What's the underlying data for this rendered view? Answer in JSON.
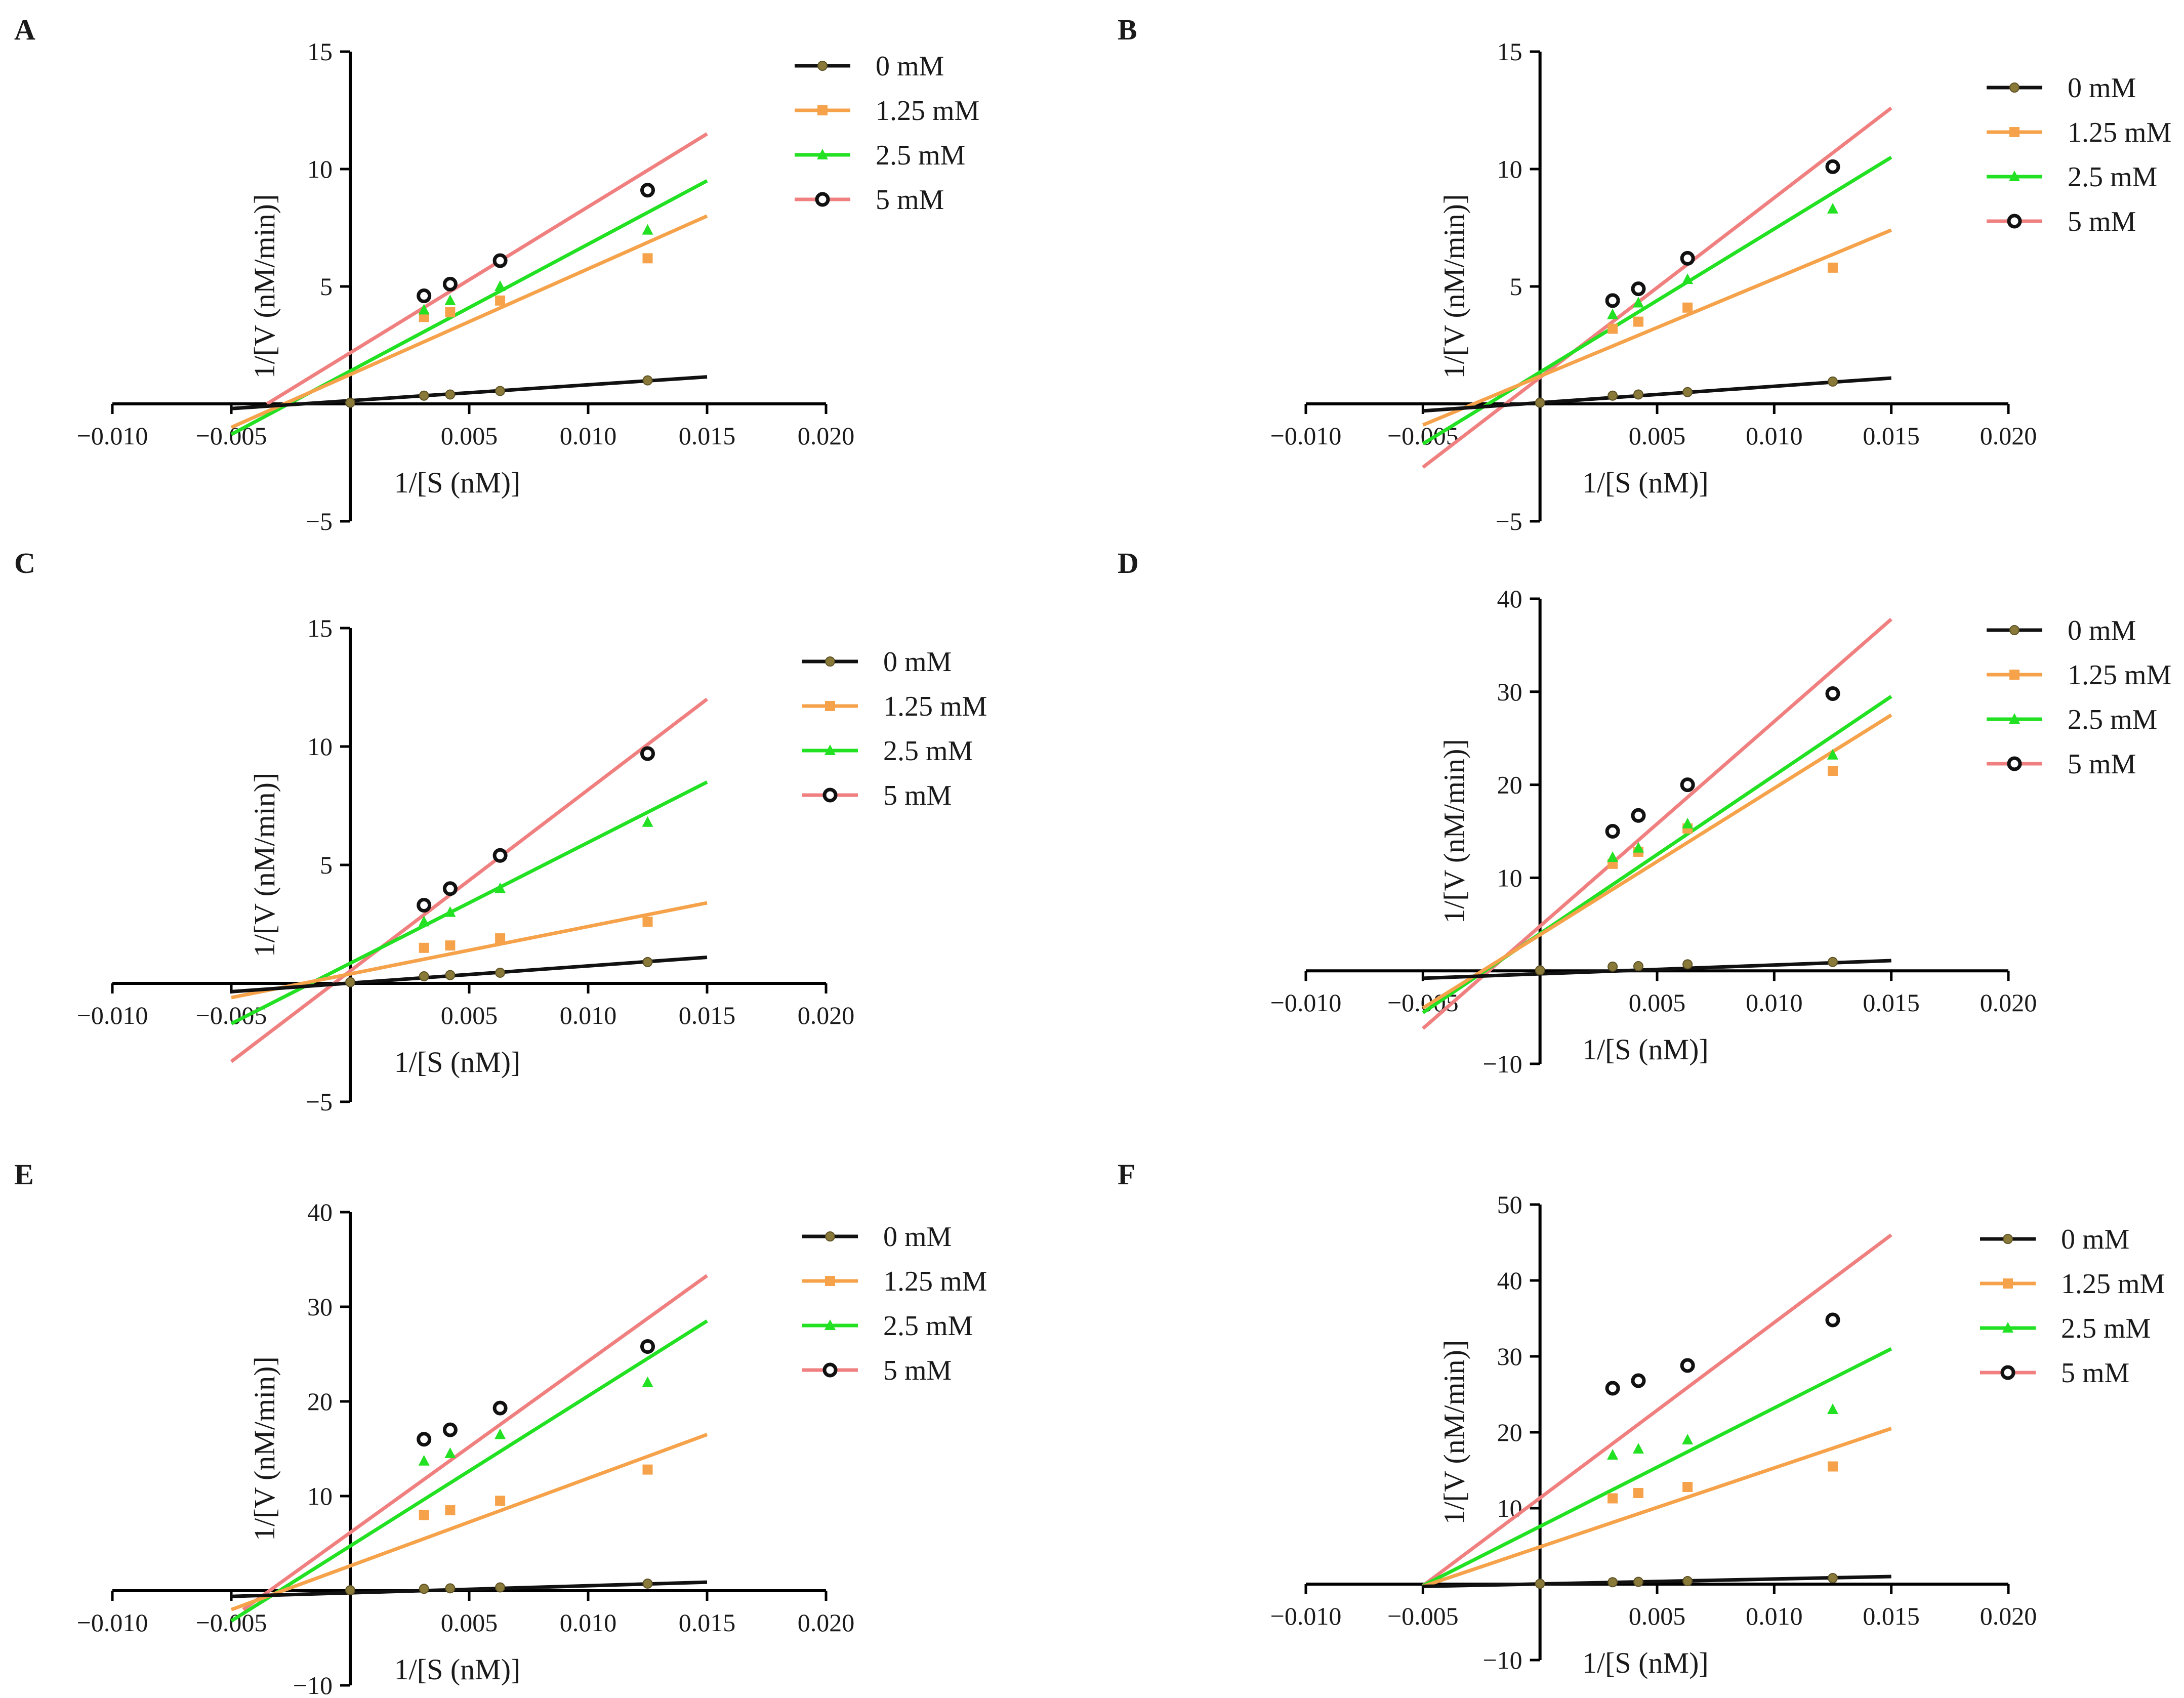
{
  "figure": {
    "panels": [
      "A",
      "B",
      "C",
      "D",
      "E",
      "F"
    ]
  },
  "colors": {
    "0 mM": "#111111",
    "1.25 mM": "#f5a24a",
    "2.5 mM": "#22e022",
    "5 mM": "#f08080",
    "axis": "#000000"
  },
  "chart_data": [
    {
      "panel": "A",
      "type": "line",
      "xlabel": "1/[S (nM)]",
      "ylabel": "1/[V (nM/min)]",
      "xlim": [
        -0.01,
        0.02
      ],
      "ylim": [
        -5,
        15
      ],
      "xticks": [
        -0.01,
        -0.005,
        0.005,
        0.01,
        0.015,
        0.02
      ],
      "xtick_labels": [
        "-0.010",
        "-0.005",
        "0.005",
        "0.010",
        "0.015",
        "0.020"
      ],
      "yticks": [
        -5,
        5,
        10,
        15
      ],
      "ytick_labels": [
        "-5",
        "5",
        "10",
        "15"
      ],
      "x": [
        0,
        0.0031,
        0.0042,
        0.0063,
        0.0125
      ],
      "legend": [
        "0 mM",
        "1.25 mM",
        "2.5 mM",
        "5 mM"
      ],
      "series": [
        {
          "name": "0 mM",
          "marker": "circle",
          "values": [
            0.05,
            0.35,
            0.4,
            0.55,
            1.0
          ],
          "fit": [
            [
              -0.005,
              -0.2
            ],
            [
              0.015,
              1.15
            ]
          ]
        },
        {
          "name": "1.25 mM",
          "marker": "square",
          "values": [
            null,
            3.7,
            3.9,
            4.4,
            6.2
          ],
          "fit": [
            [
              -0.005,
              -1.0
            ],
            [
              0.015,
              8.0
            ]
          ]
        },
        {
          "name": "2.5 mM",
          "marker": "triangle",
          "values": [
            null,
            4.0,
            4.4,
            5.0,
            7.4
          ],
          "fit": [
            [
              -0.005,
              -1.3
            ],
            [
              0.015,
              9.5
            ]
          ]
        },
        {
          "name": "5 mM",
          "marker": "diamond",
          "values": [
            null,
            4.6,
            5.1,
            6.1,
            9.1
          ],
          "fit": [
            [
              -0.0035,
              0.0
            ],
            [
              0.015,
              11.5
            ]
          ]
        }
      ]
    },
    {
      "panel": "B",
      "type": "line",
      "xlabel": "1/[S (nM)]",
      "ylabel": "1/[V (nM/min)]",
      "xlim": [
        -0.01,
        0.02
      ],
      "ylim": [
        -5,
        15
      ],
      "xticks": [
        -0.01,
        -0.005,
        0.005,
        0.01,
        0.015,
        0.02
      ],
      "xtick_labels": [
        "-0.010",
        "-0.005",
        "0.005",
        "0.010",
        "0.015",
        "0.020"
      ],
      "yticks": [
        -5,
        5,
        10,
        15
      ],
      "ytick_labels": [
        "-5",
        "5",
        "10",
        "15"
      ],
      "x": [
        0,
        0.0031,
        0.0042,
        0.0063,
        0.0125
      ],
      "legend": [
        "0 mM",
        "1.25 mM",
        "2.5 mM",
        "5 mM"
      ],
      "series": [
        {
          "name": "0 mM",
          "marker": "circle",
          "values": [
            0.05,
            0.35,
            0.4,
            0.5,
            0.95
          ],
          "fit": [
            [
              -0.005,
              -0.3
            ],
            [
              0.015,
              1.1
            ]
          ]
        },
        {
          "name": "1.25 mM",
          "marker": "square",
          "values": [
            null,
            3.2,
            3.5,
            4.1,
            5.8
          ],
          "fit": [
            [
              -0.005,
              -0.9
            ],
            [
              0.015,
              7.4
            ]
          ]
        },
        {
          "name": "2.5 mM",
          "marker": "triangle",
          "values": [
            null,
            3.8,
            4.3,
            5.3,
            8.3
          ],
          "fit": [
            [
              -0.005,
              -1.7
            ],
            [
              0.015,
              10.5
            ]
          ]
        },
        {
          "name": "5 mM",
          "marker": "diamond",
          "values": [
            null,
            4.4,
            4.9,
            6.2,
            10.1
          ],
          "fit": [
            [
              -0.005,
              -2.7
            ],
            [
              0.015,
              12.6
            ]
          ]
        }
      ]
    },
    {
      "panel": "C",
      "type": "line",
      "xlabel": "1/[S (nM)]",
      "ylabel": "1/[V (nM/min)]",
      "xlim": [
        -0.01,
        0.02
      ],
      "ylim": [
        -5,
        15
      ],
      "xticks": [
        -0.01,
        -0.005,
        0.005,
        0.01,
        0.015,
        0.02
      ],
      "xtick_labels": [
        "-0.010",
        "-0.005",
        "0.005",
        "0.010",
        "0.015",
        "0.020"
      ],
      "yticks": [
        -5,
        5,
        10,
        15
      ],
      "ytick_labels": [
        "-5",
        "5",
        "10",
        "15"
      ],
      "x": [
        0,
        0.0031,
        0.0042,
        0.0063,
        0.0125
      ],
      "legend": [
        "0 mM",
        "1.25 mM",
        "2.5 mM",
        "5 mM"
      ],
      "series": [
        {
          "name": "0 mM",
          "marker": "circle",
          "values": [
            0.05,
            0.3,
            0.35,
            0.45,
            0.9
          ],
          "fit": [
            [
              -0.005,
              -0.35
            ],
            [
              0.015,
              1.1
            ]
          ]
        },
        {
          "name": "1.25 mM",
          "marker": "square",
          "values": [
            null,
            1.5,
            1.6,
            1.9,
            2.6
          ],
          "fit": [
            [
              -0.005,
              -0.6
            ],
            [
              0.015,
              3.4
            ]
          ]
        },
        {
          "name": "2.5 mM",
          "marker": "triangle",
          "values": [
            null,
            2.6,
            3.0,
            4.0,
            6.8
          ],
          "fit": [
            [
              -0.005,
              -1.7
            ],
            [
              0.015,
              8.5
            ]
          ]
        },
        {
          "name": "5 mM",
          "marker": "diamond",
          "values": [
            null,
            3.3,
            4.0,
            5.4,
            9.7
          ],
          "fit": [
            [
              -0.005,
              -3.3
            ],
            [
              0.015,
              12.0
            ]
          ]
        }
      ]
    },
    {
      "panel": "D",
      "type": "line",
      "xlabel": "1/[S (nM)]",
      "ylabel": "1/[V (nM/min)]",
      "xlim": [
        -0.01,
        0.02
      ],
      "ylim": [
        -10,
        40
      ],
      "xticks": [
        -0.01,
        -0.005,
        0.005,
        0.01,
        0.015,
        0.02
      ],
      "xtick_labels": [
        "-0.010",
        "-0.005",
        "0.005",
        "0.010",
        "0.015",
        "0.020"
      ],
      "yticks": [
        -10,
        10,
        20,
        30,
        40
      ],
      "ytick_labels": [
        "-10",
        "10",
        "20",
        "30",
        "40"
      ],
      "x": [
        0,
        0.0031,
        0.0042,
        0.0063,
        0.0125
      ],
      "legend": [
        "0 mM",
        "1.25 mM",
        "2.5 mM",
        "5 mM"
      ],
      "series": [
        {
          "name": "0 mM",
          "marker": "circle",
          "values": [
            0.05,
            0.45,
            0.5,
            0.7,
            0.95
          ],
          "fit": [
            [
              -0.005,
              -0.8
            ],
            [
              0.015,
              1.1
            ]
          ]
        },
        {
          "name": "1.25 mM",
          "marker": "square",
          "values": [
            null,
            11.5,
            12.8,
            15.3,
            21.5
          ],
          "fit": [
            [
              -0.005,
              -4.0
            ],
            [
              0.015,
              27.5
            ]
          ]
        },
        {
          "name": "2.5 mM",
          "marker": "triangle",
          "values": [
            null,
            12.2,
            13.2,
            15.8,
            23.2
          ],
          "fit": [
            [
              -0.005,
              -4.5
            ],
            [
              0.015,
              29.5
            ]
          ]
        },
        {
          "name": "5 mM",
          "marker": "diamond",
          "values": [
            null,
            15.0,
            16.7,
            20.0,
            29.8
          ],
          "fit": [
            [
              -0.005,
              -6.2
            ],
            [
              0.015,
              37.8
            ]
          ]
        }
      ]
    },
    {
      "panel": "E",
      "type": "line",
      "xlabel": "1/[S (nM)]",
      "ylabel": "1/[V (nM/min)]",
      "xlim": [
        -0.01,
        0.02
      ],
      "ylim": [
        -10,
        40
      ],
      "xticks": [
        -0.01,
        -0.005,
        0.005,
        0.01,
        0.015,
        0.02
      ],
      "xtick_labels": [
        "-0.010",
        "-0.005",
        "0.005",
        "0.010",
        "0.015",
        "0.020"
      ],
      "yticks": [
        -10,
        10,
        20,
        30,
        40
      ],
      "ytick_labels": [
        "-10",
        "10",
        "20",
        "30",
        "40"
      ],
      "x": [
        0,
        0.0031,
        0.0042,
        0.0063,
        0.0125
      ],
      "legend": [
        "0 mM",
        "1.25 mM",
        "2.5 mM",
        "5 mM"
      ],
      "series": [
        {
          "name": "0 mM",
          "marker": "circle",
          "values": [
            0.05,
            0.2,
            0.25,
            0.35,
            0.75
          ],
          "fit": [
            [
              -0.005,
              -0.6
            ],
            [
              0.015,
              0.9
            ]
          ]
        },
        {
          "name": "1.25 mM",
          "marker": "square",
          "values": [
            null,
            8.0,
            8.5,
            9.5,
            12.8
          ],
          "fit": [
            [
              -0.005,
              -2.0
            ],
            [
              0.015,
              16.5
            ]
          ]
        },
        {
          "name": "2.5 mM",
          "marker": "triangle",
          "values": [
            null,
            13.7,
            14.5,
            16.5,
            22.0
          ],
          "fit": [
            [
              -0.005,
              -3.2
            ],
            [
              0.015,
              28.5
            ]
          ]
        },
        {
          "name": "5 mM",
          "marker": "diamond",
          "values": [
            null,
            16.0,
            17.0,
            19.3,
            25.8
          ],
          "fit": [
            [
              -0.0045,
              -2.0
            ],
            [
              0.015,
              33.3
            ]
          ]
        }
      ]
    },
    {
      "panel": "F",
      "type": "line",
      "xlabel": "1/[S (nM)]",
      "ylabel": "1/[V (nM/min)]",
      "xlim": [
        -0.01,
        0.02
      ],
      "ylim": [
        -10,
        50
      ],
      "xticks": [
        -0.01,
        -0.005,
        0.005,
        0.01,
        0.015,
        0.02
      ],
      "xtick_labels": [
        "-0.010",
        "-0.005",
        "0.005",
        "0.010",
        "0.015",
        "0.020"
      ],
      "yticks": [
        -10,
        10,
        20,
        30,
        40,
        50
      ],
      "ytick_labels": [
        "-10",
        "10",
        "20",
        "30",
        "40",
        "50"
      ],
      "x": [
        0,
        0.0031,
        0.0042,
        0.0063,
        0.0125
      ],
      "legend": [
        "0 mM",
        "1.25 mM",
        "2.5 mM",
        "5 mM"
      ],
      "series": [
        {
          "name": "0 mM",
          "marker": "circle",
          "values": [
            0.05,
            0.25,
            0.3,
            0.4,
            0.8
          ],
          "fit": [
            [
              -0.005,
              -0.3
            ],
            [
              0.015,
              1.0
            ]
          ]
        },
        {
          "name": "1.25 mM",
          "marker": "square",
          "values": [
            null,
            11.3,
            12.0,
            12.8,
            15.5
          ],
          "fit": [
            [
              -0.005,
              -0.3
            ],
            [
              0.015,
              20.5
            ]
          ]
        },
        {
          "name": "2.5 mM",
          "marker": "triangle",
          "values": [
            null,
            17.0,
            17.8,
            19.0,
            23.0
          ],
          "fit": [
            [
              -0.005,
              -0.2
            ],
            [
              0.015,
              31.0
            ]
          ]
        },
        {
          "name": "5 mM",
          "marker": "diamond",
          "values": [
            null,
            25.8,
            26.8,
            28.8,
            34.8
          ],
          "fit": [
            [
              -0.005,
              -0.2
            ],
            [
              0.015,
              46.0
            ]
          ]
        }
      ]
    }
  ]
}
